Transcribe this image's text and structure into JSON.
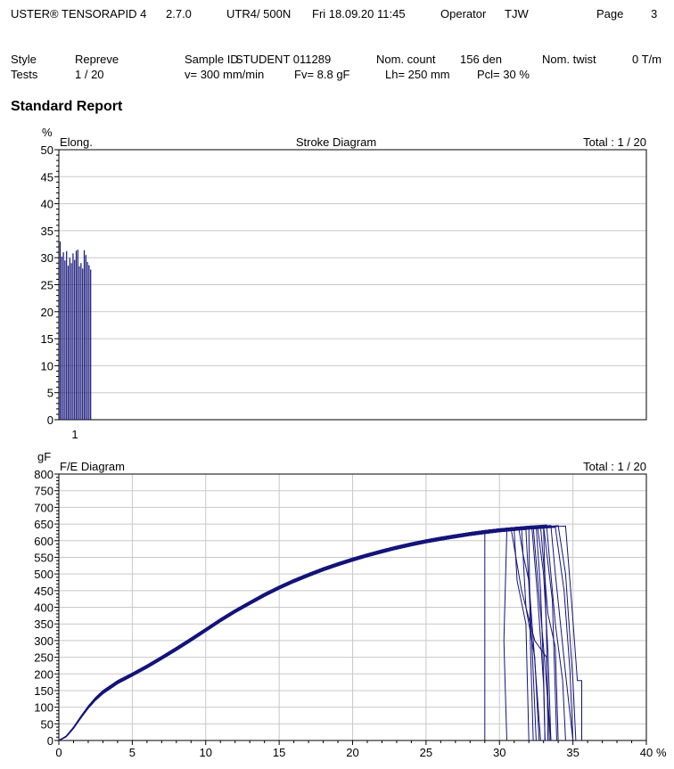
{
  "header": {
    "app": "USTER® TENSORAPID 4",
    "version": "2.7.0",
    "instrument": "UTR4/  500N",
    "datetime": "Fri 18.09.20 11:45",
    "operator_label": "Operator",
    "operator": "TJW",
    "page_label": "Page",
    "page": "3"
  },
  "info": {
    "style_label": "Style",
    "style": "Repreve",
    "tests_label": "Tests",
    "tests": "1 / 20",
    "sample_id_label": "Sample ID",
    "sample_id": "STUDENT   011289",
    "speed": "v=  300 mm/min",
    "fv": "Fv=  8.8 gF",
    "nom_count_label": "Nom. count",
    "nom_count": "156 den",
    "lh": "Lh=  250 mm",
    "pcl": "Pcl=   30 %",
    "nom_twist_label": "Nom. twist",
    "nom_twist": "0 T/m"
  },
  "report_title": "Standard Report",
  "chart_data": [
    {
      "type": "bar",
      "title": "Stroke Diagram",
      "unit": "%",
      "ylabel": "Elong.",
      "total": "Total : 1 / 20",
      "ylim": [
        0,
        50
      ],
      "yticks": [
        0,
        5,
        10,
        15,
        20,
        25,
        30,
        35,
        40,
        45,
        50
      ],
      "xtick_label": "1",
      "grid": true,
      "values": [
        33.0,
        30.2,
        31.0,
        29.5,
        31.2,
        28.5,
        30.0,
        29.0,
        30.8,
        29.6,
        31.3,
        31.5,
        28.4,
        29.0,
        28.0,
        31.4,
        30.5,
        29.2,
        28.6,
        27.8
      ]
    },
    {
      "type": "line",
      "title": "F/E Diagram",
      "unit": "gF",
      "total": "Total : 1 / 20",
      "xlabel": "%",
      "xlim": [
        0,
        40
      ],
      "ylim": [
        0,
        800
      ],
      "xticks": [
        0,
        5,
        10,
        15,
        20,
        25,
        30,
        35,
        40
      ],
      "yticks": [
        0,
        50,
        100,
        150,
        200,
        250,
        300,
        350,
        400,
        450,
        500,
        550,
        600,
        650,
        700,
        750,
        800
      ],
      "grid": true,
      "common_curve": [
        [
          0,
          0
        ],
        [
          0.5,
          12
        ],
        [
          1,
          38
        ],
        [
          1.5,
          70
        ],
        [
          2,
          100
        ],
        [
          2.5,
          125
        ],
        [
          3,
          145
        ],
        [
          4,
          175
        ],
        [
          5,
          198
        ],
        [
          6,
          222
        ],
        [
          7,
          248
        ],
        [
          8,
          275
        ],
        [
          9,
          303
        ],
        [
          10,
          332
        ],
        [
          11,
          361
        ],
        [
          12,
          388
        ],
        [
          13,
          413
        ],
        [
          14,
          437
        ],
        [
          15,
          459
        ],
        [
          16,
          479
        ],
        [
          17,
          497
        ],
        [
          18,
          514
        ],
        [
          19,
          529
        ],
        [
          20,
          543
        ],
        [
          21,
          556
        ],
        [
          22,
          568
        ],
        [
          23,
          579
        ],
        [
          24,
          589
        ],
        [
          25,
          598
        ],
        [
          26,
          606
        ],
        [
          27,
          613
        ],
        [
          28,
          620
        ],
        [
          29,
          626
        ],
        [
          30,
          631
        ],
        [
          31,
          635
        ],
        [
          32,
          639
        ],
        [
          33,
          642
        ],
        [
          34,
          645
        ],
        [
          35,
          647
        ]
      ],
      "series": [
        {
          "break_at": 29.0,
          "tail": [
            [
              29.0,
              0
            ]
          ]
        },
        {
          "break_at": 30.5,
          "tail": [
            [
              30.3,
              300
            ],
            [
              30.4,
              150
            ],
            [
              30.5,
              0
            ]
          ]
        },
        {
          "break_at": 32.0,
          "tail": [
            [
              32.1,
              300
            ],
            [
              32.3,
              0
            ]
          ]
        },
        {
          "break_at": 32.5,
          "tail": [
            [
              32.8,
              450
            ],
            [
              33.0,
              200
            ],
            [
              33.1,
              0
            ]
          ]
        },
        {
          "break_at": 31.5,
          "tail": [
            [
              31.8,
              400
            ],
            [
              32.4,
              250
            ],
            [
              32.7,
              0
            ]
          ]
        },
        {
          "break_at": 33.0,
          "tail": [
            [
              33.2,
              320
            ],
            [
              33.3,
              0
            ]
          ]
        },
        {
          "break_at": 31.0,
          "tail": [
            [
              31.2,
              480
            ],
            [
              31.8,
              350
            ],
            [
              32.0,
              0
            ]
          ]
        },
        {
          "break_at": 32.8,
          "tail": [
            [
              33.3,
              380
            ],
            [
              33.8,
              280
            ],
            [
              34.0,
              0
            ]
          ]
        },
        {
          "break_at": 33.5,
          "tail": [
            [
              33.8,
              500
            ],
            [
              34.5,
              200
            ],
            [
              35.0,
              0
            ]
          ]
        },
        {
          "break_at": 32.2,
          "tail": [
            [
              32.6,
              430
            ],
            [
              33.0,
              170
            ],
            [
              33.1,
              0
            ]
          ]
        },
        {
          "break_at": 33.8,
          "tail": [
            [
              34.4,
              450
            ],
            [
              34.8,
              210
            ],
            [
              35.0,
              0
            ]
          ]
        },
        {
          "break_at": 34.5,
          "tail": [
            [
              34.9,
              420
            ],
            [
              35.3,
              180
            ],
            [
              35.6,
              180
            ],
            [
              35.6,
              0
            ]
          ]
        },
        {
          "break_at": 30.8,
          "tail": [
            [
              31.5,
              450
            ],
            [
              32.4,
              300
            ],
            [
              33.2,
              250
            ],
            [
              33.4,
              0
            ]
          ]
        },
        {
          "break_at": 32.3,
          "tail": [
            [
              33.0,
              280
            ],
            [
              33.5,
              0
            ]
          ]
        },
        {
          "break_at": 33.2,
          "tail": [
            [
              33.8,
              350
            ],
            [
              34.3,
              180
            ],
            [
              34.5,
              0
            ]
          ]
        },
        {
          "break_at": 31.8,
          "tail": [
            [
              32.2,
              300
            ],
            [
              32.5,
              0
            ]
          ]
        },
        {
          "break_at": 32.6,
          "tail": [
            [
              33.0,
              500
            ],
            [
              33.3,
              270
            ],
            [
              33.5,
              0
            ]
          ]
        },
        {
          "break_at": 34.0,
          "tail": [
            [
              34.5,
              500
            ],
            [
              35.0,
              180
            ],
            [
              35.2,
              0
            ]
          ]
        },
        {
          "break_at": 33.0,
          "tail": [
            [
              33.6,
              420
            ],
            [
              33.9,
              0
            ]
          ]
        },
        {
          "break_at": 31.3,
          "tail": [
            [
              31.6,
              560
            ],
            [
              32.0,
              480
            ],
            [
              32.8,
              0
            ]
          ]
        }
      ]
    }
  ],
  "colors": {
    "line": "#14147a",
    "grid": "#c8c8c8",
    "axis": "#000000"
  }
}
